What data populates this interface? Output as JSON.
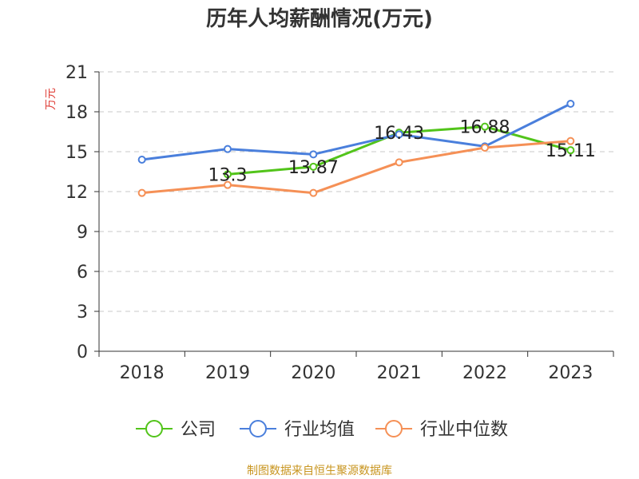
{
  "chart_data": {
    "type": "line",
    "title": "历年人均薪酬情况(万元)",
    "ylabel": "万元",
    "xlabel": "",
    "categories": [
      "2018",
      "2019",
      "2020",
      "2021",
      "2022",
      "2023"
    ],
    "ylim": [
      0,
      21
    ],
    "yticks": [
      "0",
      "3",
      "6",
      "9",
      "12",
      "15",
      "18",
      "21"
    ],
    "grid": true,
    "legend_position": "bottom",
    "series": [
      {
        "name": "公司",
        "color": "#52c41a",
        "values": [
          null,
          13.3,
          13.87,
          16.43,
          16.88,
          15.11
        ],
        "labels": [
          null,
          "13.3",
          "13.87",
          "16.43",
          "16.88",
          "15.11"
        ]
      },
      {
        "name": "行业均值",
        "color": "#4a7fdc",
        "values": [
          14.4,
          15.2,
          14.8,
          16.3,
          15.4,
          18.6
        ]
      },
      {
        "name": "行业中位数",
        "color": "#f59056",
        "values": [
          11.9,
          12.5,
          11.9,
          14.2,
          15.3,
          15.8
        ]
      }
    ]
  },
  "source": "制图数据来自恒生聚源数据库"
}
